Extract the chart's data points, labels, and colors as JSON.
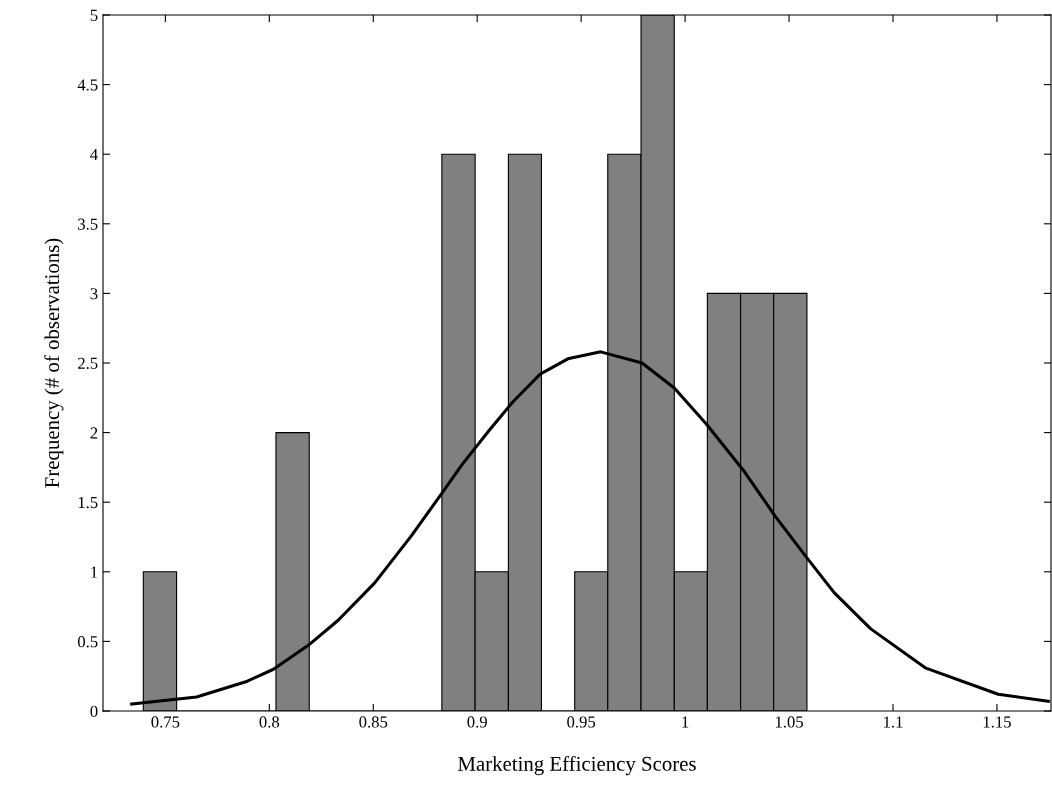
{
  "chart_data": {
    "type": "histogram",
    "xlabel": "Marketing Efficiency Scores",
    "ylabel": "Frequency (# of observations)",
    "bins": [
      0.7394,
      0.7554,
      0.7713,
      0.7873,
      0.8032,
      0.8192,
      0.8352,
      0.8511,
      0.8671,
      0.883,
      0.899,
      0.915,
      0.9309,
      0.9469,
      0.9628,
      0.9788,
      0.9948,
      1.0107,
      1.0267,
      1.0426,
      1.0586
    ],
    "values": [
      1,
      0,
      0,
      0,
      2,
      0,
      0,
      0,
      0,
      4,
      1,
      4,
      0,
      1,
      4,
      5,
      1,
      3,
      3,
      3
    ],
    "color": "#808080",
    "series": [
      {
        "type": "line",
        "color": "#000000",
        "x": [
          0.7338,
          0.765,
          0.7887,
          0.802,
          0.8186,
          0.833,
          0.8507,
          0.8684,
          0.8828,
          0.8927,
          0.906,
          0.9171,
          0.9303,
          0.9436,
          0.9594,
          0.9793,
          0.9948,
          1.0103,
          1.028,
          1.0433,
          1.0586,
          1.0717,
          1.0893,
          1.1155,
          1.1506,
          1.1747
        ],
        "values": [
          0.05,
          0.1,
          0.21,
          0.3,
          0.47,
          0.65,
          0.92,
          1.26,
          1.56,
          1.77,
          2.02,
          2.22,
          2.42,
          2.53,
          2.58,
          2.5,
          2.32,
          2.06,
          1.73,
          1.4,
          1.1,
          0.85,
          0.59,
          0.31,
          0.12,
          0.07
        ]
      }
    ],
    "xlim": [
      0.72,
      1.176
    ],
    "ylim": [
      0,
      5
    ],
    "xticks": [
      0.75,
      0.8,
      0.85,
      0.9,
      0.95,
      1,
      1.05,
      1.1,
      1.15
    ],
    "yticks": [
      0,
      0.5,
      1,
      1.5,
      2,
      2.5,
      3,
      3.5,
      4,
      4.5,
      5
    ],
    "grid": false,
    "legend": false
  }
}
